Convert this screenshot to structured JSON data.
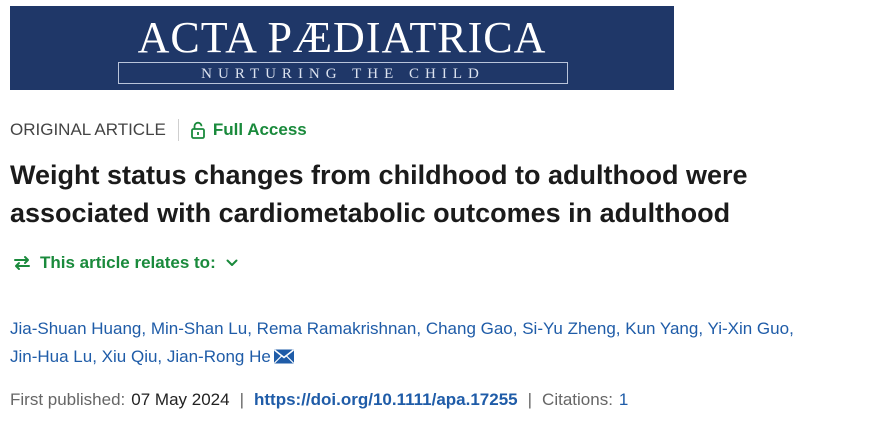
{
  "banner": {
    "title": "ACTA PÆDIATRICA",
    "subtitle": "NURTURING THE CHILD"
  },
  "meta": {
    "article_type": "ORIGINAL ARTICLE",
    "access_label": "Full Access",
    "lock_icon": "lock-open-icon"
  },
  "article": {
    "title": "Weight status changes from childhood to adulthood were associated with cardiometabolic outcomes in adulthood"
  },
  "relates": {
    "label": "This article relates to:",
    "left_icon": "swap-arrows-icon",
    "right_icon": "chevron-down-icon"
  },
  "authors": [
    "Jia-Shuan Huang",
    "Min-Shan Lu",
    "Rema Ramakrishnan",
    "Chang Gao",
    "Si-Yu Zheng",
    "Kun Yang",
    "Yi-Xin Guo",
    "Jin-Hua Lu",
    "Xiu Qiu",
    "Jian-Rong He"
  ],
  "publication": {
    "first_published_label": "First published:",
    "first_published_date": "07 May 2024",
    "doi": "https://doi.org/10.1111/apa.17255",
    "citations_label": "Citations:",
    "citations_count": "1"
  },
  "colors": {
    "banner_bg": "#1f3768",
    "green": "#1a8a3c",
    "link_blue": "#1f5ca8"
  }
}
